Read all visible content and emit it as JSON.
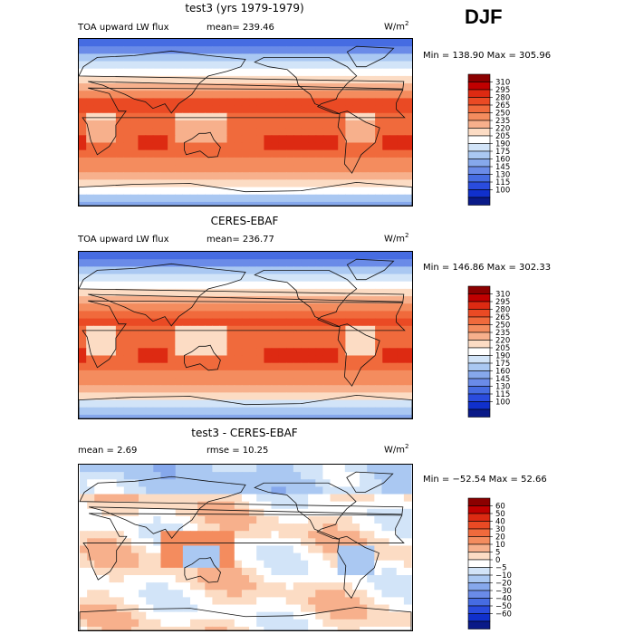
{
  "figure": {
    "season": "DJF",
    "colors": {
      "land_outline": "#111111",
      "frame": "#000000"
    }
  },
  "chart_data": [
    {
      "type": "heatmap",
      "title": "test3 (yrs 1979-1979)",
      "variable": "TOA upward LW flux",
      "stat_text": "mean=  239.46",
      "units": "W/m",
      "units_sup": "2",
      "range_text": "Min = 138.90 Max = 305.96",
      "min": 138.9,
      "max": 305.96,
      "mean": 239.46,
      "colorbar": {
        "levels": [
          "310",
          "295",
          "280",
          "265",
          "250",
          "235",
          "220",
          "205",
          "190",
          "175",
          "160",
          "145",
          "130",
          "115",
          "100"
        ],
        "colors": [
          "#8b0000",
          "#c00000",
          "#dd2a12",
          "#ea4a24",
          "#f06a3c",
          "#f48c5e",
          "#f7b08c",
          "#fcdcc4",
          "#ffffff",
          "#d2e4f8",
          "#aac8f2",
          "#86a8ec",
          "#6a8be8",
          "#466ce2",
          "#2a4cde",
          "#1030cc",
          "#0a1a88"
        ]
      },
      "field": "lw_model"
    },
    {
      "type": "heatmap",
      "title": "CERES-EBAF",
      "variable": "TOA upward LW flux",
      "stat_text": "mean=  236.77",
      "units": "W/m",
      "units_sup": "2",
      "range_text": "Min = 146.86 Max = 302.33",
      "min": 146.86,
      "max": 302.33,
      "mean": 236.77,
      "colorbar": {
        "levels": [
          "310",
          "295",
          "280",
          "265",
          "250",
          "235",
          "220",
          "205",
          "190",
          "175",
          "160",
          "145",
          "130",
          "115",
          "100"
        ],
        "colors": [
          "#8b0000",
          "#c00000",
          "#dd2a12",
          "#ea4a24",
          "#f06a3c",
          "#f48c5e",
          "#f7b08c",
          "#fcdcc4",
          "#ffffff",
          "#d2e4f8",
          "#aac8f2",
          "#86a8ec",
          "#6a8be8",
          "#466ce2",
          "#2a4cde",
          "#1030cc",
          "#0a1a88"
        ]
      },
      "field": "lw_obs"
    },
    {
      "type": "heatmap",
      "title": "test3 - CERES-EBAF",
      "stat_text": "mean =   2.69",
      "rmse_text": "rmse =   10.25",
      "units": "W/m",
      "units_sup": "2",
      "range_text": "Min = −52.54 Max =  52.66",
      "min": -52.54,
      "max": 52.66,
      "mean": 2.69,
      "rmse": 10.25,
      "colorbar": {
        "levels": [
          "60",
          "50",
          "40",
          "30",
          "20",
          "10",
          "5",
          "0",
          "−5",
          "−10",
          "−20",
          "−30",
          "−40",
          "−50",
          "−60"
        ],
        "colors": [
          "#8b0000",
          "#c00000",
          "#dd2a12",
          "#ea4a24",
          "#f06a3c",
          "#f48c5e",
          "#f7b08c",
          "#fcdcc4",
          "#ffffff",
          "#d2e4f8",
          "#aac8f2",
          "#86a8ec",
          "#6a8be8",
          "#466ce2",
          "#2a4cde",
          "#1030cc",
          "#0a1a88"
        ]
      },
      "field": "lw_diff"
    }
  ]
}
